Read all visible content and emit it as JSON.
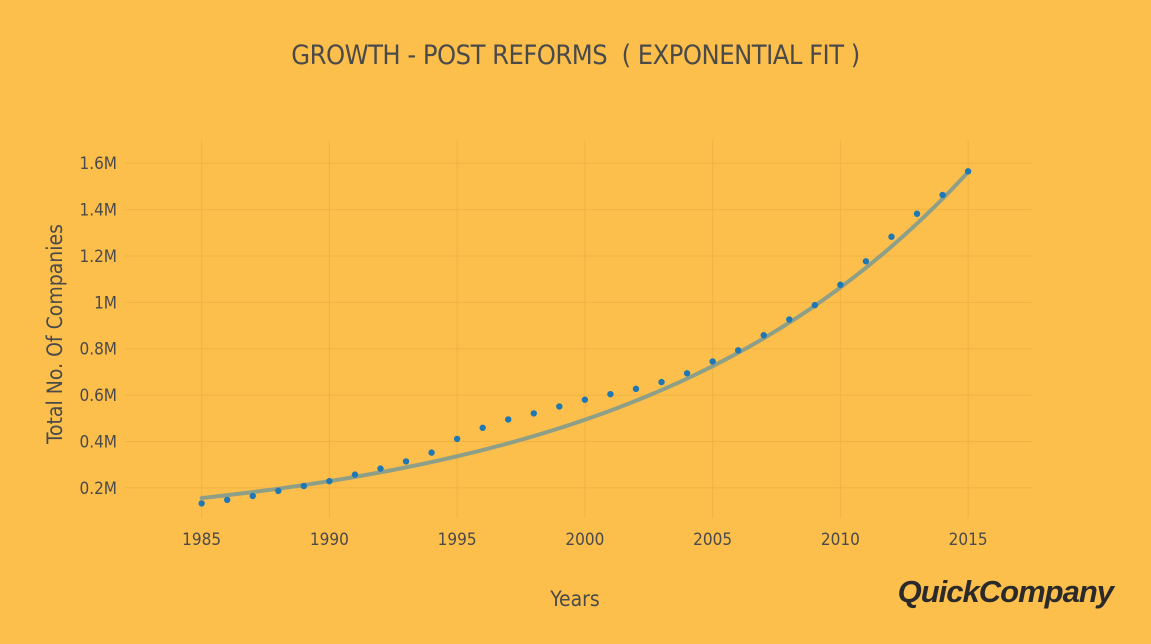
{
  "chart_data": {
    "type": "scatter",
    "title": "GROWTH - POST REFORMS  ( EXPONENTIAL FIT )",
    "xlabel": "Years",
    "ylabel": "Total No. Of Companies",
    "xlim": [
      1982,
      2017.5
    ],
    "ylim": [
      0.07,
      1.7
    ],
    "x_ticks": [
      1985,
      1990,
      1995,
      2000,
      2005,
      2010,
      2015
    ],
    "y_ticks": [
      {
        "value": 0.2,
        "label": "0.2M"
      },
      {
        "value": 0.4,
        "label": "0.4M"
      },
      {
        "value": 0.6,
        "label": "0.6M"
      },
      {
        "value": 0.8,
        "label": "0.8M"
      },
      {
        "value": 1.0,
        "label": "1M"
      },
      {
        "value": 1.2,
        "label": "1.2M"
      },
      {
        "value": 1.4,
        "label": "1.4M"
      },
      {
        "value": 1.6,
        "label": "1.6M"
      }
    ],
    "grid": true,
    "series": [
      {
        "type": "scatter",
        "x": [
          1985,
          1986,
          1987,
          1988,
          1989,
          1990,
          1991,
          1992,
          1993,
          1994,
          1995,
          1996,
          1997,
          1998,
          1999,
          2000,
          2001,
          2002,
          2003,
          2004,
          2005,
          2006,
          2007,
          2008,
          2009,
          2010,
          2011,
          2012,
          2013,
          2014,
          2015
        ],
        "values": [
          0.133,
          0.148,
          0.165,
          0.187,
          0.208,
          0.229,
          0.257,
          0.283,
          0.314,
          0.352,
          0.411,
          0.459,
          0.495,
          0.521,
          0.551,
          0.58,
          0.604,
          0.627,
          0.656,
          0.694,
          0.745,
          0.793,
          0.858,
          0.926,
          0.988,
          1.076,
          1.177,
          1.283,
          1.382,
          1.463,
          1.565
        ],
        "color": "#1F77B4"
      },
      {
        "type": "line",
        "fit": "exponential",
        "fit_a": 0.156,
        "fit_b": 0.0768,
        "fit_x0": 1985,
        "x_start": 1985,
        "x_end": 2015,
        "color": "#8E9F88"
      }
    ]
  },
  "brand": {
    "logo_text": "QuickCompany"
  },
  "colors": {
    "background": "#FDBF4B",
    "text": "#4A4A4A",
    "grid": "#F0B243",
    "points": "#1F77B4",
    "fit_line": "#8E9F88"
  }
}
